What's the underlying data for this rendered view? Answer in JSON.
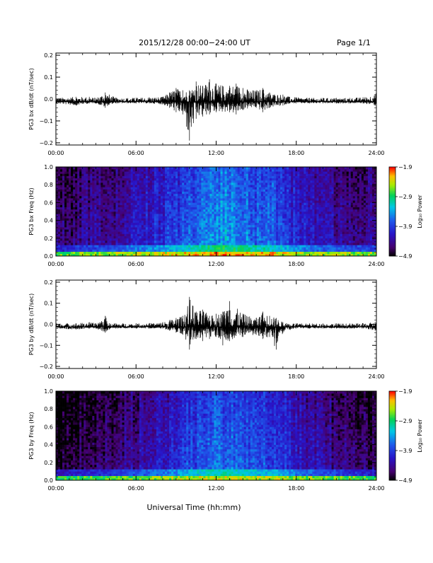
{
  "header": {
    "title": "2015/12/28  00:00−24:00 UT",
    "page": "Page 1/1"
  },
  "footer": {
    "xlabel": "Universal Time (hh:mm)"
  },
  "colors": {
    "trace": "#000000",
    "axes": "#000000",
    "background": "#ffffff"
  },
  "chart_data": [
    {
      "type": "line",
      "ylabel": "PG3 bx dB/dt (nT/sec)",
      "xlim": [
        0,
        24
      ],
      "ylim": [
        -0.21,
        0.21
      ],
      "xticks": [
        "00:00",
        "06:00",
        "12:00",
        "18:00",
        "24:00"
      ],
      "yticks": [
        -0.2,
        -0.1,
        0.0,
        0.1,
        0.2
      ],
      "ytick_labels": [
        "−0.2",
        "−0.1",
        "0.0",
        "0.1",
        "0.2"
      ],
      "series": [
        {
          "x": [
            0,
            1.5,
            2.5,
            3.0,
            3.7,
            4.0,
            4.5,
            6.0,
            7.0,
            8.0,
            8.5,
            9.0,
            9.5,
            10.0,
            10.5,
            11.0,
            11.5,
            12.0,
            13.0,
            13.5,
            14.0,
            15.0,
            15.5,
            16.0,
            17.0,
            17.5,
            18.0,
            19.0,
            20.0,
            21.0,
            22.0,
            23.0,
            23.9,
            24.0
          ],
          "max": [
            0.005,
            0.01,
            0.01,
            0.005,
            0.03,
            0.02,
            0.006,
            0.006,
            0.008,
            0.01,
            0.03,
            0.05,
            0.04,
            0.04,
            0.08,
            0.06,
            0.09,
            0.07,
            0.06,
            0.07,
            0.05,
            0.04,
            0.05,
            0.03,
            0.02,
            0.01,
            0.008,
            0.005,
            0.005,
            0.005,
            0.005,
            0.008,
            0.02,
            0.03
          ],
          "min": [
            -0.02,
            -0.03,
            -0.02,
            -0.02,
            -0.04,
            -0.025,
            -0.02,
            -0.02,
            -0.02,
            -0.025,
            -0.04,
            -0.06,
            -0.07,
            -0.19,
            -0.09,
            -0.08,
            -0.07,
            -0.06,
            -0.06,
            -0.07,
            -0.05,
            -0.04,
            -0.06,
            -0.04,
            -0.03,
            -0.02,
            -0.02,
            -0.02,
            -0.02,
            -0.02,
            -0.02,
            -0.02,
            -0.03,
            -0.025
          ]
        }
      ]
    },
    {
      "type": "heatmap",
      "ylabel": "PG3 bx Freq (Hz)",
      "xlim": [
        0,
        24
      ],
      "ylim": [
        0.0,
        1.0
      ],
      "xticks": [
        "00:00",
        "06:00",
        "12:00",
        "18:00",
        "24:00"
      ],
      "yticks": [
        0.0,
        0.2,
        0.4,
        0.6,
        0.8,
        1.0
      ],
      "ytick_labels": [
        "0.0",
        "0.2",
        "0.4",
        "0.6",
        "0.8",
        "1.0"
      ],
      "colorbar": {
        "label": "Log₁₀ Power",
        "range": [
          -4.9,
          -1.9
        ],
        "ticks": [
          -1.9,
          -2.9,
          -3.9,
          -4.9
        ],
        "tick_labels": [
          "−1.9",
          "−2.9",
          "−3.9",
          "−4.9"
        ]
      },
      "activity_profile": {
        "hours": [
          0,
          2,
          4,
          6,
          8,
          9,
          10,
          11,
          12,
          13,
          14,
          15,
          16,
          17,
          18,
          20,
          22,
          24
        ],
        "log_power_mid": [
          -4.6,
          -4.4,
          -4.3,
          -4.1,
          -3.9,
          -3.8,
          -3.7,
          -3.5,
          -3.4,
          -3.4,
          -3.5,
          -3.6,
          -3.6,
          -3.8,
          -4.0,
          -4.2,
          -4.3,
          -4.4
        ]
      },
      "low_freq_band_log_power": -2.6
    },
    {
      "type": "line",
      "ylabel": "PG3 by dB/dt (nT/sec)",
      "xlim": [
        0,
        24
      ],
      "ylim": [
        -0.21,
        0.21
      ],
      "xticks": [
        "00:00",
        "06:00",
        "12:00",
        "18:00",
        "24:00"
      ],
      "yticks": [
        -0.2,
        -0.1,
        0.0,
        0.1,
        0.2
      ],
      "ytick_labels": [
        "−0.2",
        "−0.1",
        "0.0",
        "0.1",
        "0.2"
      ],
      "series": [
        {
          "x": [
            0,
            1.5,
            2.5,
            3.0,
            3.7,
            4.0,
            4.5,
            6.0,
            7.0,
            8.0,
            8.5,
            9.0,
            9.5,
            10.0,
            10.5,
            11.0,
            11.5,
            12.0,
            12.5,
            13.0,
            14.0,
            15.0,
            15.5,
            16.0,
            16.5,
            17.0,
            18.0,
            19.0,
            20.0,
            21.0,
            22.0,
            23.0,
            23.9,
            24.0
          ],
          "max": [
            0.005,
            0.005,
            0.01,
            0.005,
            0.04,
            0.005,
            0.005,
            0.005,
            0.006,
            0.01,
            0.02,
            0.03,
            0.04,
            0.13,
            0.06,
            0.07,
            0.04,
            0.05,
            0.06,
            0.11,
            0.05,
            0.03,
            0.06,
            0.04,
            0.03,
            0.01,
            0.005,
            0.004,
            0.004,
            0.004,
            0.004,
            0.005,
            0.01,
            0.01
          ],
          "min": [
            -0.02,
            -0.025,
            -0.02,
            -0.02,
            -0.04,
            -0.025,
            -0.02,
            -0.02,
            -0.02,
            -0.02,
            -0.03,
            -0.04,
            -0.05,
            -0.12,
            -0.07,
            -0.08,
            -0.07,
            -0.06,
            -0.1,
            -0.08,
            -0.06,
            -0.05,
            -0.07,
            -0.06,
            -0.12,
            -0.04,
            -0.02,
            -0.02,
            -0.02,
            -0.02,
            -0.02,
            -0.02,
            -0.03,
            -0.03
          ]
        }
      ]
    },
    {
      "type": "heatmap",
      "ylabel": "PG3 by Freq (Hz)",
      "xlim": [
        0,
        24
      ],
      "ylim": [
        0.0,
        1.0
      ],
      "xticks": [
        "00:00",
        "06:00",
        "12:00",
        "18:00",
        "24:00"
      ],
      "yticks": [
        0.0,
        0.2,
        0.4,
        0.6,
        0.8,
        1.0
      ],
      "ytick_labels": [
        "0.0",
        "0.2",
        "0.4",
        "0.6",
        "0.8",
        "1.0"
      ],
      "colorbar": {
        "label": "Log₁₀ Power",
        "range": [
          -4.9,
          -1.9
        ],
        "ticks": [
          -1.9,
          -2.9,
          -3.9,
          -4.9
        ],
        "tick_labels": [
          "−1.9",
          "−2.9",
          "−3.9",
          "−4.9"
        ]
      },
      "activity_profile": {
        "hours": [
          0,
          2,
          4,
          6,
          8,
          9,
          10,
          11,
          12,
          13,
          14,
          15,
          16,
          17,
          18,
          20,
          22,
          24
        ],
        "log_power_mid": [
          -4.7,
          -4.6,
          -4.5,
          -4.3,
          -4.1,
          -4.0,
          -3.8,
          -3.7,
          -3.6,
          -3.6,
          -3.7,
          -3.8,
          -3.8,
          -3.9,
          -4.1,
          -4.3,
          -4.5,
          -4.6
        ]
      },
      "low_freq_band_log_power": -2.7
    }
  ]
}
